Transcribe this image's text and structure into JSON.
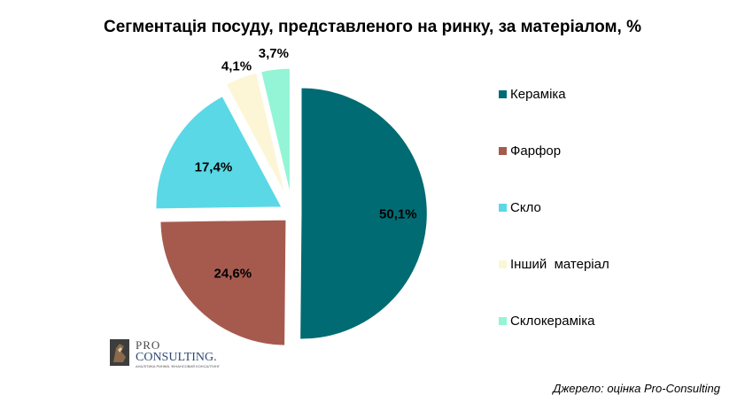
{
  "chart_data": {
    "type": "pie",
    "title": "Сегментація посуду, представленого на ринку, за матеріалом, %",
    "categories": [
      "Кераміка",
      "Фарфор",
      "Скло",
      "Інший  матеріал",
      "Склокераміка"
    ],
    "values": [
      50.1,
      24.6,
      17.4,
      4.1,
      3.7
    ],
    "value_labels": [
      "50,1%",
      "24,6%",
      "17,4%",
      "4,1%",
      "3,7%"
    ],
    "colors": [
      "#006b72",
      "#a65a4e",
      "#5ad8e6",
      "#fdf6d6",
      "#93f5d6"
    ],
    "exploded": true,
    "legend_position": "right"
  },
  "logo": {
    "top_text": "PRO",
    "bottom_text": "CONSULTING.",
    "tagline": "АНАЛІТИКА РИНКІВ, ФІНАНСОВИЙ КОНСАЛТИНГ"
  },
  "source_note": "Джерело: оцінка Pro-Consulting"
}
